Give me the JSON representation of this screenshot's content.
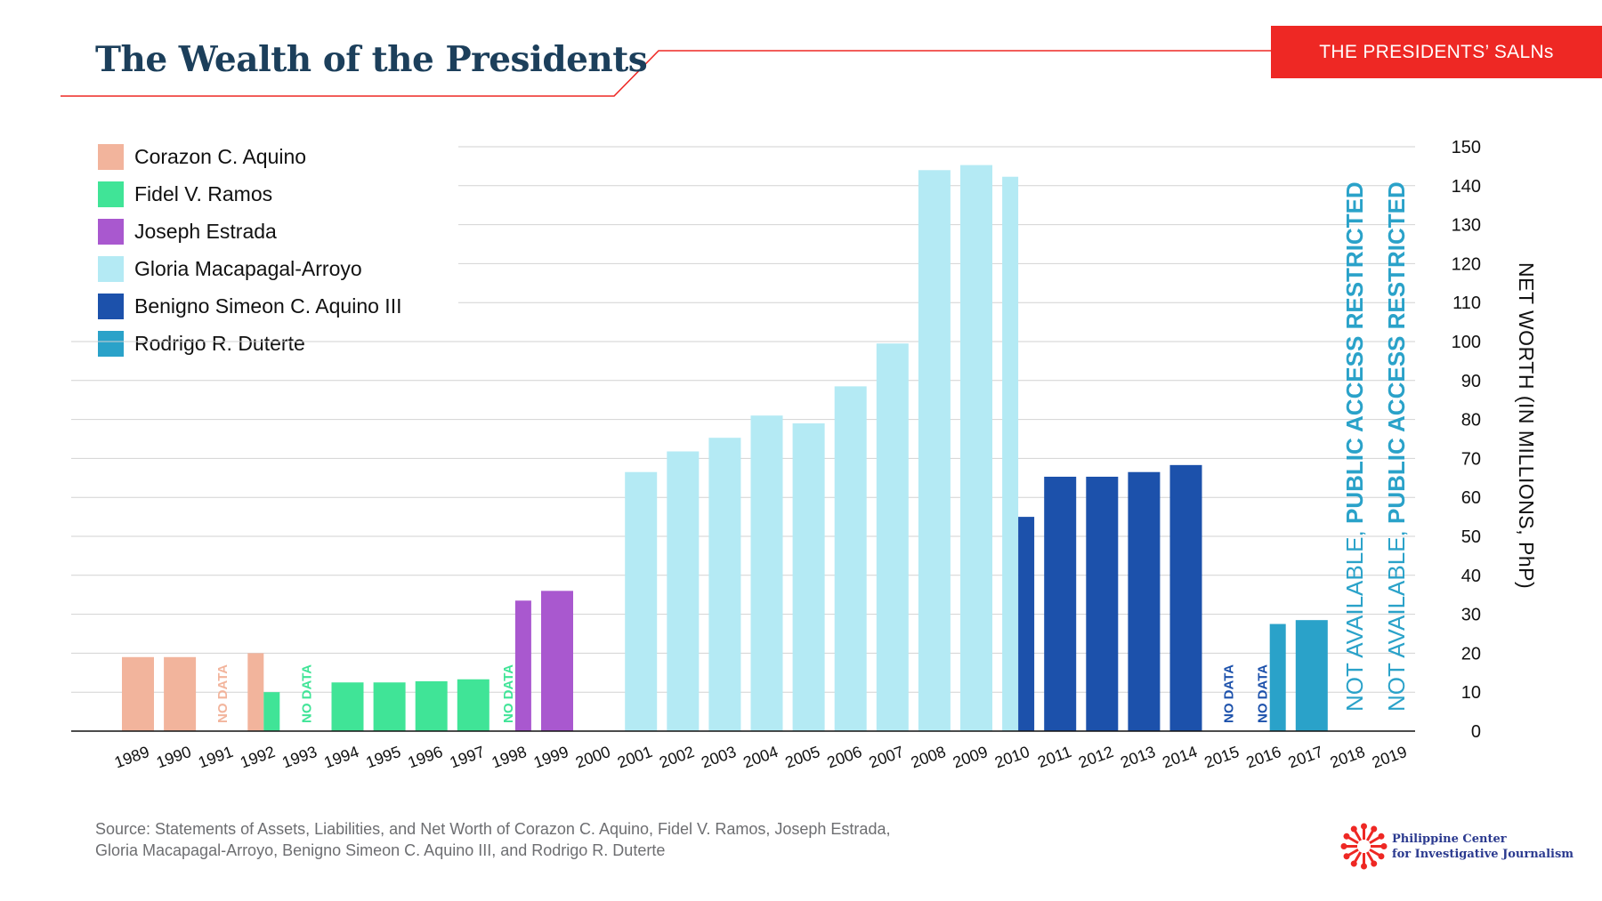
{
  "header": {
    "title": "The Wealth of the Presidents",
    "badge_label": "THE PRESIDENTS’ SALNs",
    "accent_color": "#ee2824",
    "title_color": "#1c3f5b"
  },
  "legend": [
    {
      "label": "Corazon C. Aquino",
      "color": "#f2b49c"
    },
    {
      "label": "Fidel V. Ramos",
      "color": "#40e497"
    },
    {
      "label": "Joseph Estrada",
      "color": "#a958cf"
    },
    {
      "label": "Gloria Macapagal-Arroyo",
      "color": "#b4eaf4"
    },
    {
      "label": "Benigno Simeon C. Aquino III",
      "color": "#1c51ab"
    },
    {
      "label": "Rodrigo R. Duterte",
      "color": "#2aa2c9"
    }
  ],
  "chart_data": {
    "type": "bar",
    "title": "The Wealth of the Presidents",
    "ylabel": "NET WORTH (IN MILLIONS, PhP)",
    "ylim": [
      0,
      150
    ],
    "y_ticks": [
      0,
      10,
      20,
      30,
      40,
      50,
      60,
      70,
      80,
      90,
      100,
      110,
      120,
      130,
      140,
      150
    ],
    "grid": true,
    "y_axis_side": "right",
    "categories": [
      "1989",
      "1990",
      "1991",
      "1992",
      "1993",
      "1994",
      "1995",
      "1996",
      "1997",
      "1998",
      "1999",
      "2000",
      "2001",
      "2002",
      "2003",
      "2004",
      "2005",
      "2006",
      "2007",
      "2008",
      "2009",
      "2010",
      "2011",
      "2012",
      "2013",
      "2014",
      "2015",
      "2016",
      "2017",
      "2018",
      "2019"
    ],
    "bars": [
      {
        "year": "1989",
        "president": "Corazon C. Aquino",
        "value": 19,
        "color": "#f2b49c",
        "part": "full"
      },
      {
        "year": "1990",
        "president": "Corazon C. Aquino",
        "value": 19,
        "color": "#f2b49c",
        "part": "full"
      },
      {
        "year": "1992",
        "president": "Corazon C. Aquino",
        "value": 20,
        "color": "#f2b49c",
        "part": "left"
      },
      {
        "year": "1992",
        "president": "Fidel V. Ramos",
        "value": 10,
        "color": "#40e497",
        "part": "right"
      },
      {
        "year": "1994",
        "president": "Fidel V. Ramos",
        "value": 12.5,
        "color": "#40e497",
        "part": "full"
      },
      {
        "year": "1995",
        "president": "Fidel V. Ramos",
        "value": 12.5,
        "color": "#40e497",
        "part": "full"
      },
      {
        "year": "1996",
        "president": "Fidel V. Ramos",
        "value": 12.8,
        "color": "#40e497",
        "part": "full"
      },
      {
        "year": "1997",
        "president": "Fidel V. Ramos",
        "value": 13.3,
        "color": "#40e497",
        "part": "full"
      },
      {
        "year": "1998",
        "president": "Joseph Estrada",
        "value": 33.5,
        "color": "#a958cf",
        "part": "right"
      },
      {
        "year": "1999",
        "president": "Joseph Estrada",
        "value": 36,
        "color": "#a958cf",
        "part": "full"
      },
      {
        "year": "2001",
        "president": "Gloria Macapagal-Arroyo",
        "value": 66.5,
        "color": "#b4eaf4",
        "part": "full"
      },
      {
        "year": "2002",
        "president": "Gloria Macapagal-Arroyo",
        "value": 71.8,
        "color": "#b4eaf4",
        "part": "full"
      },
      {
        "year": "2003",
        "president": "Gloria Macapagal-Arroyo",
        "value": 75.3,
        "color": "#b4eaf4",
        "part": "full"
      },
      {
        "year": "2004",
        "president": "Gloria Macapagal-Arroyo",
        "value": 81,
        "color": "#b4eaf4",
        "part": "full"
      },
      {
        "year": "2005",
        "president": "Gloria Macapagal-Arroyo",
        "value": 79,
        "color": "#b4eaf4",
        "part": "full"
      },
      {
        "year": "2006",
        "president": "Gloria Macapagal-Arroyo",
        "value": 88.5,
        "color": "#b4eaf4",
        "part": "full"
      },
      {
        "year": "2007",
        "president": "Gloria Macapagal-Arroyo",
        "value": 99.5,
        "color": "#b4eaf4",
        "part": "full"
      },
      {
        "year": "2008",
        "president": "Gloria Macapagal-Arroyo",
        "value": 144,
        "color": "#b4eaf4",
        "part": "full"
      },
      {
        "year": "2009",
        "president": "Gloria Macapagal-Arroyo",
        "value": 145.3,
        "color": "#b4eaf4",
        "part": "full"
      },
      {
        "year": "2010",
        "president": "Gloria Macapagal-Arroyo",
        "value": 142.3,
        "color": "#b4eaf4",
        "part": "left"
      },
      {
        "year": "2010",
        "president": "Benigno Simeon C. Aquino III",
        "value": 55,
        "color": "#1c51ab",
        "part": "right"
      },
      {
        "year": "2011",
        "president": "Benigno Simeon C. Aquino III",
        "value": 65.3,
        "color": "#1c51ab",
        "part": "full"
      },
      {
        "year": "2012",
        "president": "Benigno Simeon C. Aquino III",
        "value": 65.3,
        "color": "#1c51ab",
        "part": "full"
      },
      {
        "year": "2013",
        "president": "Benigno Simeon C. Aquino III",
        "value": 66.5,
        "color": "#1c51ab",
        "part": "full"
      },
      {
        "year": "2014",
        "president": "Benigno Simeon C. Aquino III",
        "value": 68.3,
        "color": "#1c51ab",
        "part": "full"
      },
      {
        "year": "2016",
        "president": "Rodrigo R. Duterte",
        "value": 27.5,
        "color": "#2aa2c9",
        "part": "right"
      },
      {
        "year": "2017",
        "president": "Rodrigo R. Duterte",
        "value": 28.5,
        "color": "#2aa2c9",
        "part": "full"
      }
    ],
    "annotations": [
      {
        "year": "1991",
        "text": "NO DATA",
        "color": "#f2b49c"
      },
      {
        "year": "1993",
        "text": "NO DATA",
        "color": "#40e497"
      },
      {
        "year": "1998",
        "text": "NO DATA",
        "color": "#40e497",
        "offset": "left"
      },
      {
        "year": "2015",
        "text": "NO DATA",
        "color": "#1c51ab"
      },
      {
        "year": "2016",
        "text": "NO DATA",
        "color": "#1c51ab",
        "offset": "left"
      }
    ],
    "restricted_notes": [
      {
        "year": "2018",
        "text_plain": "NOT AVAILABLE, ",
        "text_bold": "PUBLIC ACCESS RESTRICTED",
        "color": "#2aa2c9"
      },
      {
        "year": "2019",
        "text_plain": "NOT AVAILABLE, ",
        "text_bold": "PUBLIC ACCESS RESTRICTED",
        "color": "#2aa2c9"
      }
    ]
  },
  "footer": {
    "source_line1": "Source: Statements of Assets, Liabilities, and Net Worth of Corazon C. Aquino, Fidel V. Ramos, Joseph Estrada,",
    "source_line2": "Gloria Macapagal-Arroyo, Benigno Simeon C. Aquino III, and Rodrigo R. Duterte",
    "logo_line1": "Philippine Center",
    "logo_line2": "for Investigative Journalism",
    "logo_color": "#ee2824"
  }
}
